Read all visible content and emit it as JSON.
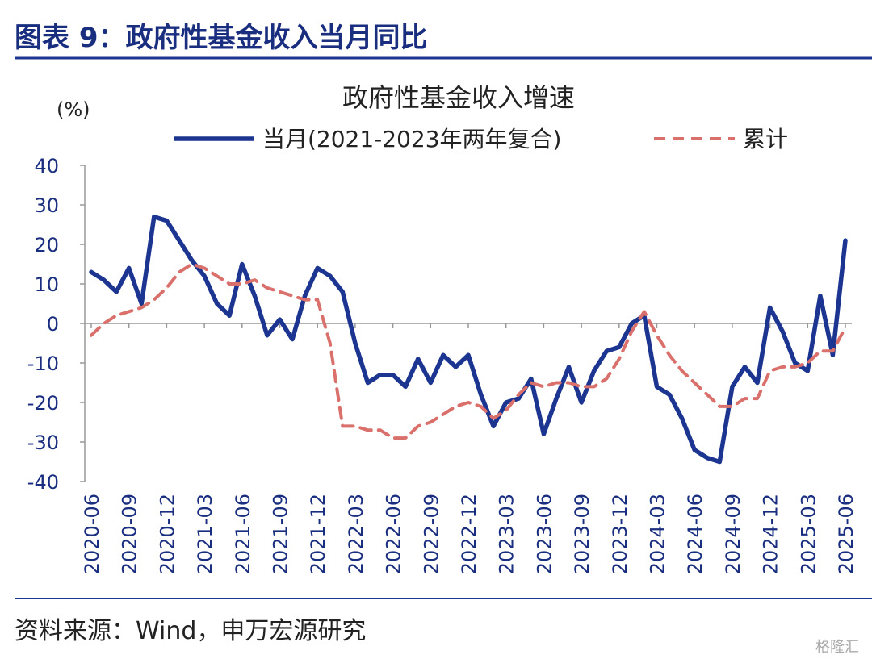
{
  "header": {
    "title": "图表 9：政府性基金收入当月同比"
  },
  "chart_data": {
    "type": "line",
    "title": "政府性基金收入增速",
    "y_label": "(%)",
    "categories": [
      "2020-06",
      null,
      null,
      "2020-09",
      null,
      null,
      "2020-12",
      null,
      null,
      "2021-03",
      null,
      null,
      "2021-06",
      null,
      null,
      "2021-09",
      null,
      null,
      "2021-12",
      null,
      null,
      "2022-03",
      null,
      null,
      "2022-06",
      null,
      null,
      "2022-09",
      null,
      null,
      "2022-12",
      null,
      null,
      "2023-03",
      null,
      null,
      "2023-06",
      null,
      null,
      "2023-09",
      null,
      null,
      "2023-12",
      null,
      null,
      "2024-03",
      null,
      null,
      "2024-06",
      null,
      null,
      "2024-09",
      null,
      null,
      "2024-12",
      null,
      null,
      "2025-03",
      null,
      null,
      "2025-06"
    ],
    "series": [
      {
        "name": "当月(2021-2023年两年复合)",
        "color": "#1c3590",
        "dashed": false,
        "values": [
          13,
          11,
          8,
          14,
          5,
          27,
          26,
          21,
          16,
          12,
          5,
          2,
          15,
          7,
          -3,
          1,
          -4,
          7,
          14,
          12,
          8,
          -5,
          -15,
          -13,
          -13,
          -16,
          -9,
          -15,
          -8,
          -11,
          -8,
          -18,
          -26,
          -20,
          -19,
          -14,
          -28,
          -19,
          -11,
          -20,
          -12,
          -7,
          -6,
          0,
          2,
          -16,
          -18,
          -24,
          -32,
          -34,
          -35,
          -16,
          -11,
          -15,
          4,
          -2,
          -10,
          -12,
          7,
          -8,
          21
        ]
      },
      {
        "name": "累计",
        "color": "#d9706b",
        "dashed": true,
        "values": [
          -3,
          0,
          2,
          3,
          4,
          6,
          9,
          13,
          15,
          14,
          12,
          10,
          10,
          11,
          9,
          8,
          7,
          6,
          6,
          -5,
          -26,
          -26,
          -27,
          -27,
          -29,
          -29,
          -26,
          -25,
          -23,
          -21,
          -20,
          -21,
          -24,
          -22,
          -18,
          -15,
          -16,
          -15,
          -15,
          -16,
          -16,
          -14,
          -9,
          -2,
          3,
          -3,
          -8,
          -12,
          -15,
          -18,
          -21,
          -21,
          -19,
          -19,
          -12,
          -11,
          -11,
          -10,
          -7,
          -7,
          -1
        ]
      }
    ],
    "ylim": [
      -40,
      40
    ],
    "yticks": [
      -40,
      -30,
      -20,
      -10,
      0,
      10,
      20,
      30,
      40
    ]
  },
  "footer": {
    "source": "资料来源：Wind，申万宏源研究",
    "watermark": "格隆汇"
  }
}
